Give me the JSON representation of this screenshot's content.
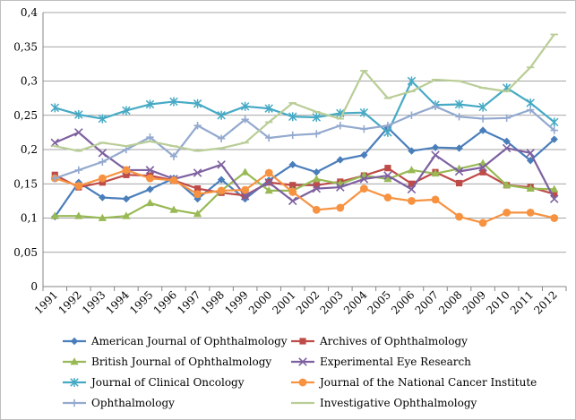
{
  "chart_data": {
    "type": "line",
    "title": "",
    "xlabel": "",
    "ylabel": "",
    "ylim": [
      0,
      0.4
    ],
    "y_ticks": [
      "0",
      "0,05",
      "0,1",
      "0,15",
      "0,2",
      "0,25",
      "0,3",
      "0,35",
      "0,4"
    ],
    "y_tick_values": [
      0,
      0.05,
      0.1,
      0.15,
      0.2,
      0.25,
      0.3,
      0.35,
      0.4
    ],
    "grid": "horizontal",
    "legend_position": "bottom",
    "categories": [
      "1991",
      "1992",
      "1993",
      "1994",
      "1995",
      "1996",
      "1997",
      "1998",
      "1999",
      "2000",
      "2001",
      "2002",
      "2003",
      "2004",
      "2005",
      "2006",
      "2007",
      "2008",
      "2009",
      "2010",
      "2011",
      "2012"
    ],
    "series": [
      {
        "name": "American Journal of Ophthalmology",
        "color": "#4a7ebb",
        "marker": "diamond",
        "values": [
          0.102,
          0.152,
          0.13,
          0.128,
          0.142,
          0.158,
          0.128,
          0.156,
          0.128,
          0.155,
          0.178,
          0.167,
          0.185,
          0.192,
          0.232,
          0.198,
          0.203,
          0.202,
          0.228,
          0.212,
          0.184,
          0.215
        ]
      },
      {
        "name": "Archives of Ophthalmology",
        "color": "#be4b48",
        "marker": "square",
        "values": [
          0.163,
          0.145,
          0.152,
          0.163,
          0.162,
          0.155,
          0.143,
          0.137,
          0.133,
          0.152,
          0.148,
          0.148,
          0.153,
          0.162,
          0.173,
          0.15,
          0.167,
          0.151,
          0.167,
          0.148,
          0.145,
          0.135
        ]
      },
      {
        "name": "British Journal of Ophthalmology",
        "color": "#98b954",
        "marker": "triangle",
        "values": [
          0.103,
          0.103,
          0.1,
          0.103,
          0.122,
          0.112,
          0.106,
          0.14,
          0.167,
          0.14,
          0.14,
          0.157,
          0.15,
          0.162,
          0.157,
          0.17,
          0.165,
          0.172,
          0.18,
          0.148,
          0.143,
          0.142
        ]
      },
      {
        "name": "Experimental Eye Research",
        "color": "#7d60a0",
        "marker": "x",
        "values": [
          0.21,
          0.225,
          0.195,
          0.17,
          0.17,
          0.157,
          0.166,
          0.178,
          0.132,
          0.152,
          0.125,
          0.143,
          0.145,
          0.157,
          0.162,
          0.142,
          0.192,
          0.168,
          0.174,
          0.202,
          0.195,
          0.128
        ]
      },
      {
        "name": "Journal of Clinical Oncology",
        "color": "#46aac5",
        "marker": "star",
        "values": [
          0.261,
          0.251,
          0.245,
          0.257,
          0.266,
          0.27,
          0.267,
          0.25,
          0.263,
          0.26,
          0.248,
          0.247,
          0.253,
          0.254,
          0.225,
          0.3,
          0.265,
          0.266,
          0.262,
          0.29,
          0.268,
          0.24
        ]
      },
      {
        "name": "Journal of the National Cancer Institute",
        "color": "#f69240",
        "marker": "circle",
        "values": [
          0.158,
          0.147,
          0.158,
          0.17,
          0.158,
          0.155,
          0.135,
          0.14,
          0.141,
          0.166,
          0.138,
          0.112,
          0.115,
          0.143,
          0.13,
          0.125,
          0.127,
          0.102,
          0.093,
          0.108,
          0.108,
          0.1
        ]
      },
      {
        "name": "Ophthalmology",
        "color": "#93a9cf",
        "marker": "plus",
        "values": [
          0.158,
          0.17,
          0.182,
          0.2,
          0.218,
          0.19,
          0.235,
          0.216,
          0.244,
          0.217,
          0.221,
          0.223,
          0.235,
          0.23,
          0.235,
          0.25,
          0.263,
          0.248,
          0.245,
          0.246,
          0.258,
          0.228
        ]
      },
      {
        "name": "Investigative Ophthalmology",
        "color": "#b9cd96",
        "marker": "dash",
        "values": [
          0.205,
          0.198,
          0.21,
          0.205,
          0.212,
          0.205,
          0.198,
          0.202,
          0.21,
          0.24,
          0.268,
          0.255,
          0.245,
          0.315,
          0.275,
          0.285,
          0.302,
          0.3,
          0.29,
          0.285,
          0.32,
          0.368
        ]
      }
    ]
  }
}
